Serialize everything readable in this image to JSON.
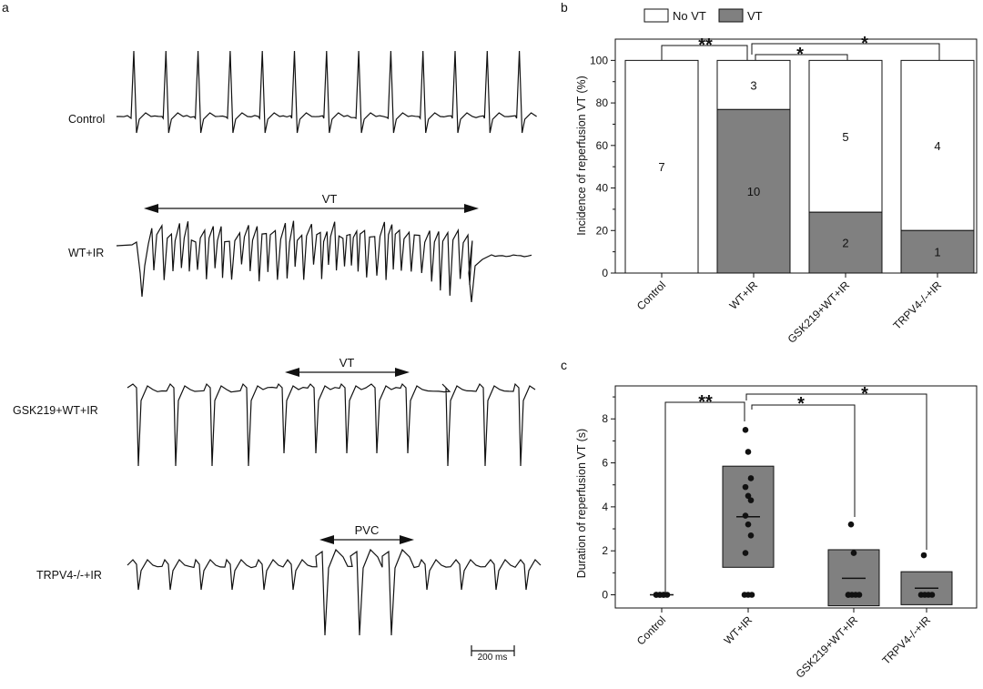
{
  "panels": {
    "a": "a",
    "b": "b",
    "c": "c"
  },
  "panel_a": {
    "traces": [
      {
        "label": "Control",
        "annotation": ""
      },
      {
        "label": "WT+IR",
        "annotation": "VT"
      },
      {
        "label": "GSK219+WT+IR",
        "annotation": "VT"
      },
      {
        "label": "TRPV4-/-+IR",
        "annotation": "PVC"
      }
    ],
    "scale_bar": "200 ms"
  },
  "legend": {
    "no_vt": "No VT",
    "vt": "VT"
  },
  "colors": {
    "vt_fill": "#808080",
    "no_vt_fill": "#ffffff",
    "line": "#111111"
  },
  "chart_data": [
    {
      "type": "bar",
      "stacked": true,
      "categories": [
        "Control",
        "WT+IR",
        "GSK219+WT+IR",
        "TRPV4-/-+IR"
      ],
      "series": [
        {
          "name": "VT",
          "values": [
            0,
            76.9,
            28.6,
            20.0
          ],
          "counts": [
            "",
            "10",
            "2",
            "1"
          ]
        },
        {
          "name": "No VT",
          "values": [
            100,
            23.1,
            71.4,
            80.0
          ],
          "counts": [
            "7",
            "3",
            "5",
            "4"
          ]
        }
      ],
      "ylabel": "Incidence of reperfusion VT (%)",
      "xlabel": "",
      "ylim": [
        0,
        110
      ],
      "yticks": [
        "0",
        "20",
        "40",
        "60",
        "80",
        "100"
      ],
      "legend_position": "top",
      "significance": [
        {
          "from": "Control",
          "to": "WT+IR",
          "label": "**"
        },
        {
          "from": "WT+IR",
          "to": "GSK219+WT+IR",
          "label": "*"
        },
        {
          "from": "WT+IR",
          "to": "TRPV4-/-+IR",
          "label": "*"
        }
      ]
    },
    {
      "type": "scatter",
      "categories": [
        "Control",
        "WT+IR",
        "GSK219+WT+IR",
        "TRPV4-/-+IR"
      ],
      "points": [
        [
          0,
          0,
          0,
          0,
          0,
          0,
          0
        ],
        [
          7.5,
          6.5,
          5.3,
          4.9,
          4.5,
          4.3,
          3.6,
          3.2,
          2.7,
          1.9,
          0,
          0,
          0
        ],
        [
          3.2,
          1.9,
          0,
          0,
          0,
          0,
          0
        ],
        [
          1.8,
          0,
          0,
          0,
          0
        ]
      ],
      "mean": [
        0,
        3.55,
        0.75,
        0.3
      ],
      "box_low": [
        0,
        1.25,
        -0.5,
        -0.45
      ],
      "box_high": [
        0,
        5.85,
        2.05,
        1.05
      ],
      "ylabel": "Duration of reperfusion VT (s)",
      "xlabel": "",
      "ylim": [
        -0.6,
        9.5
      ],
      "yticks": [
        "0",
        "2",
        "4",
        "6",
        "8"
      ],
      "significance": [
        {
          "from": "Control",
          "to": "WT+IR",
          "label": "**"
        },
        {
          "from": "WT+IR",
          "to": "GSK219+WT+IR",
          "label": "*"
        },
        {
          "from": "WT+IR",
          "to": "TRPV4-/-+IR",
          "label": "*"
        }
      ]
    }
  ]
}
